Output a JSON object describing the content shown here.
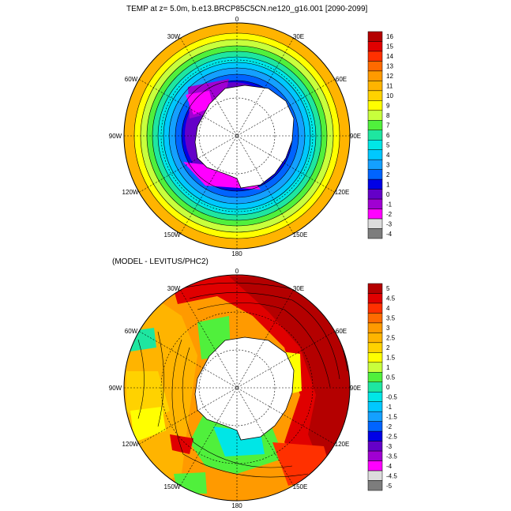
{
  "panels": [
    {
      "id": "top",
      "title": "TEMP at z=   5.0m, b.e13.BRCP85C5CN.ne120_g16.001 [2090-2099]",
      "lon_labels": [
        "0",
        "30E",
        "60E",
        "90E",
        "120E",
        "150E",
        "180",
        "150W",
        "120W",
        "90W",
        "60W",
        "30W"
      ],
      "colorbar": {
        "labels": [
          "16",
          "15",
          "14",
          "13",
          "12",
          "11",
          "10",
          "9",
          "8",
          "7",
          "6",
          "5",
          "4",
          "3",
          "2",
          "1",
          "0",
          "-1",
          "-2",
          "-3",
          "-4"
        ],
        "colors": [
          "#b40000",
          "#e00000",
          "#ff3000",
          "#ff6a00",
          "#ff9a00",
          "#ffb400",
          "#ffd200",
          "#ffff00",
          "#c8ff3c",
          "#50f03c",
          "#1ee6a0",
          "#00e6e6",
          "#00c8ff",
          "#14a0ff",
          "#0064ff",
          "#0000e6",
          "#6400c8",
          "#a000d2",
          "#ff00ff",
          "#dcdcdc",
          "#7d7d7d"
        ]
      }
    },
    {
      "id": "bottom",
      "title": "(MODEL - LEVITUS/PHC2)",
      "lon_labels": [
        "0",
        "30E",
        "60E",
        "90E",
        "120E",
        "150E",
        "180",
        "150W",
        "120W",
        "90W",
        "60W",
        "30W"
      ],
      "colorbar": {
        "labels": [
          "5",
          "4.5",
          "4",
          "3.5",
          "3",
          "2.5",
          "2",
          "1.5",
          "1",
          "0.5",
          "0",
          "-0.5",
          "-1",
          "-1.5",
          "-2",
          "-2.5",
          "-3",
          "-3.5",
          "-4",
          "-4.5",
          "-5"
        ],
        "colors": [
          "#b40000",
          "#e00000",
          "#ff3000",
          "#ff6a00",
          "#ff9a00",
          "#ffb400",
          "#ffd200",
          "#ffff00",
          "#c8ff3c",
          "#50f03c",
          "#1ee6a0",
          "#00e6e6",
          "#00c8ff",
          "#14a0ff",
          "#0064ff",
          "#0000e6",
          "#6400c8",
          "#a000d2",
          "#ff00ff",
          "#dcdcdc",
          "#7d7d7d"
        ]
      }
    }
  ]
}
